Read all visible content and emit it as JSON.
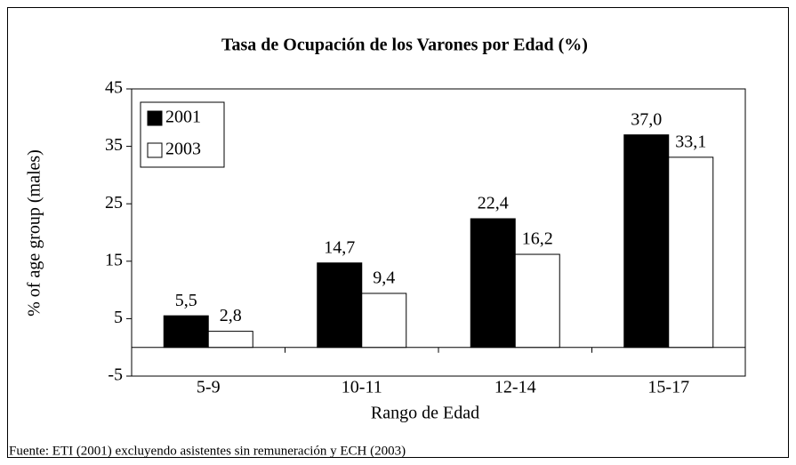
{
  "chart_data": {
    "type": "bar",
    "title": "Tasa de Ocupación de los Varones por Edad (%)",
    "x_label": "Rango de Edad",
    "y_label": "% of age group (males)",
    "note": "Fuente: ETI (2001) excluyendo asistentes sin remuneración y ECH (2003)",
    "categories": [
      "5-9",
      "10-11",
      "12-14",
      "15-17"
    ],
    "series": [
      {
        "name": "2001",
        "color": "#000000",
        "values": [
          5.5,
          14.7,
          22.4,
          37.0
        ],
        "value_labels": [
          "5,5",
          "14,7",
          "22,4",
          "37,0"
        ]
      },
      {
        "name": "2003",
        "color": "#ffffff",
        "values": [
          2.8,
          9.4,
          16.2,
          33.1
        ],
        "value_labels": [
          "2,8",
          "9,4",
          "16,2",
          "33,1"
        ]
      }
    ],
    "ylim": [
      -5,
      45
    ],
    "yticks": [
      -5,
      5,
      15,
      25,
      35,
      45
    ],
    "legend": "top-left",
    "grid": false
  }
}
